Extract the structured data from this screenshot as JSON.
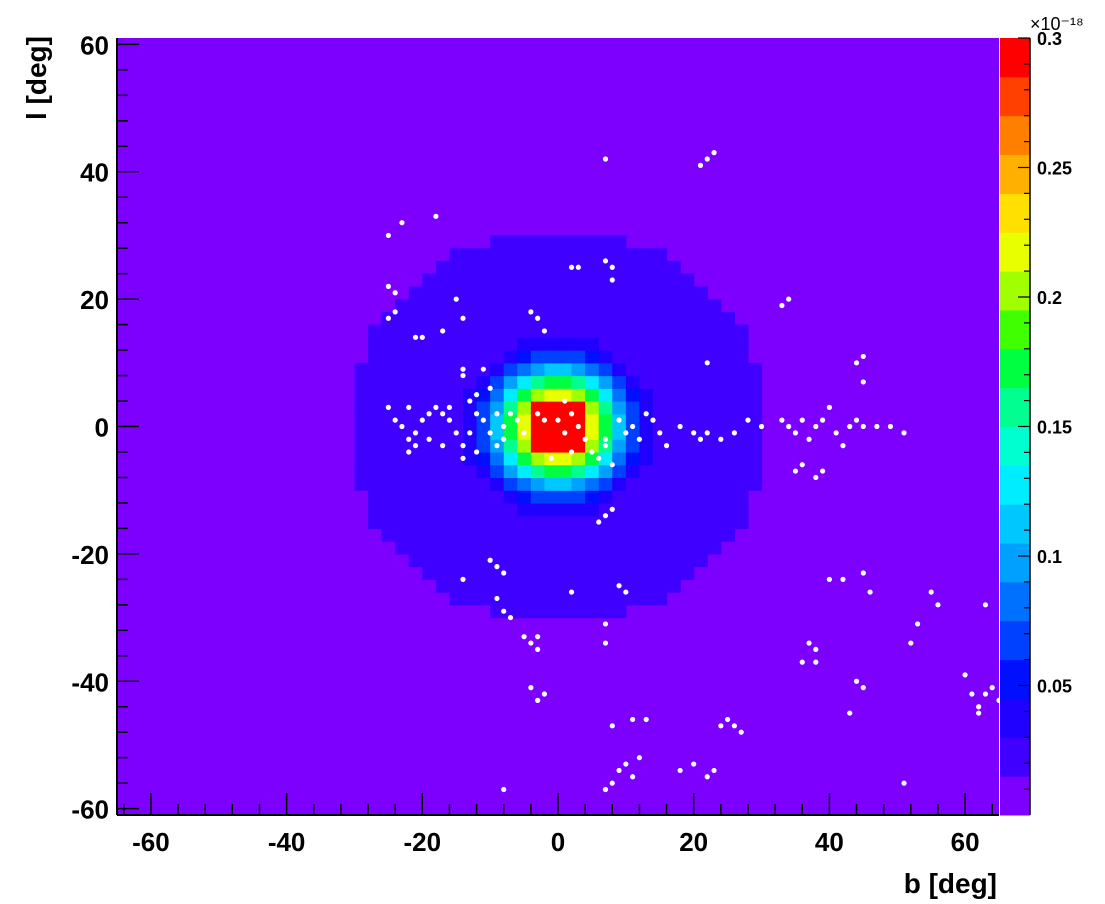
{
  "chart_data": {
    "type": "heatmap",
    "title": "",
    "xlabel": "b [deg]",
    "ylabel": "l [deg]",
    "xlim": [
      -65,
      65
    ],
    "ylim": [
      -61,
      61
    ],
    "x_ticks": [
      "-60",
      "-40",
      "-20",
      "0",
      "20",
      "40",
      "60"
    ],
    "y_ticks": [
      "60",
      "40",
      "20",
      "0",
      "-20",
      "-40",
      "-60"
    ],
    "colorbar": {
      "exponent": "×10⁻¹⁸",
      "range": [
        0,
        0.3
      ],
      "tick_labels": [
        "0.3",
        "0.25",
        "0.2",
        "0.15",
        "0.1",
        "0.05"
      ],
      "tick_values": [
        0.3,
        0.25,
        0.2,
        0.15,
        0.1,
        0.05
      ]
    },
    "heatmap_model": {
      "description": "radially symmetric intensity centered at (0,0)",
      "peak": 0.3,
      "sigma_deg": 6.5,
      "cutoff_radius_deg": 31,
      "bin_deg": 2
    },
    "palette": [
      "#7d00ff",
      "#4000ff",
      "#2000ff",
      "#0010ff",
      "#0040ff",
      "#0070ff",
      "#00a0ff",
      "#00c8ff",
      "#00ecff",
      "#00ffd0",
      "#00ff90",
      "#00ff40",
      "#40ff00",
      "#a0ff00",
      "#e8ff00",
      "#ffe000",
      "#ffb000",
      "#ff8000",
      "#ff4000",
      "#ff0000"
    ],
    "background_color": "#7d00ff",
    "points": [
      [
        -25,
        30
      ],
      [
        -23,
        32
      ],
      [
        -18,
        33
      ],
      [
        -25,
        22
      ],
      [
        -24,
        21
      ],
      [
        -25,
        17
      ],
      [
        -24,
        18
      ],
      [
        -21,
        14
      ],
      [
        -20,
        14
      ],
      [
        -17,
        15
      ],
      [
        -15,
        20
      ],
      [
        -14,
        17
      ],
      [
        -14,
        8
      ],
      [
        -14,
        9
      ],
      [
        -12,
        5
      ],
      [
        -11,
        9
      ],
      [
        -10,
        6
      ],
      [
        -25,
        3
      ],
      [
        -24,
        1
      ],
      [
        -22,
        3
      ],
      [
        -23,
        0
      ],
      [
        -22,
        -2
      ],
      [
        -21,
        -3
      ],
      [
        -20,
        1
      ],
      [
        -19,
        2
      ],
      [
        -17,
        2
      ],
      [
        -16,
        1
      ],
      [
        -15,
        -1
      ],
      [
        -14,
        -3
      ],
      [
        -13,
        -1
      ],
      [
        -12,
        2
      ],
      [
        -11,
        1
      ],
      [
        -10,
        -1
      ],
      [
        -9,
        -3
      ],
      [
        -8,
        0
      ],
      [
        -7,
        2
      ],
      [
        -6,
        1
      ],
      [
        -5,
        -1
      ],
      [
        -22,
        -4
      ],
      [
        -21,
        -1
      ],
      [
        -19,
        -2
      ],
      [
        -18,
        3
      ],
      [
        -17,
        -3
      ],
      [
        -16,
        3
      ],
      [
        -12,
        -4
      ],
      [
        -14,
        -5
      ],
      [
        -13,
        4
      ],
      [
        -9,
        2
      ],
      [
        -8,
        -2
      ],
      [
        -4,
        18
      ],
      [
        -3,
        17
      ],
      [
        -2,
        15
      ],
      [
        -3,
        2
      ],
      [
        -2,
        1
      ],
      [
        0,
        1
      ],
      [
        1,
        -1
      ],
      [
        2,
        -4
      ],
      [
        -1,
        -5
      ],
      [
        1,
        4
      ],
      [
        2,
        2
      ],
      [
        3,
        0
      ],
      [
        4,
        -2
      ],
      [
        5,
        -4
      ],
      [
        6,
        -5
      ],
      [
        7,
        -3
      ],
      [
        8,
        -6
      ],
      [
        7,
        -2
      ],
      [
        9,
        1
      ],
      [
        10,
        -1
      ],
      [
        11,
        0
      ],
      [
        12,
        -2
      ],
      [
        13,
        2
      ],
      [
        14,
        1
      ],
      [
        15,
        -1
      ],
      [
        16,
        -3
      ],
      [
        18,
        0
      ],
      [
        20,
        -1
      ],
      [
        21,
        -2
      ],
      [
        22,
        -1
      ],
      [
        24,
        -2
      ],
      [
        26,
        -1
      ],
      [
        28,
        1
      ],
      [
        30,
        0
      ],
      [
        33,
        1
      ],
      [
        34,
        0
      ],
      [
        35,
        -1
      ],
      [
        36,
        1
      ],
      [
        37,
        -2
      ],
      [
        38,
        0
      ],
      [
        39,
        1
      ],
      [
        40,
        3
      ],
      [
        41,
        -1
      ],
      [
        42,
        -3
      ],
      [
        43,
        0
      ],
      [
        44,
        1
      ],
      [
        45,
        0
      ],
      [
        47,
        0
      ],
      [
        49,
        0
      ],
      [
        51,
        -1
      ],
      [
        35,
        -7
      ],
      [
        36,
        -6
      ],
      [
        38,
        -8
      ],
      [
        39,
        -7
      ],
      [
        44,
        10
      ],
      [
        45,
        11
      ],
      [
        45,
        7
      ],
      [
        40,
        -24
      ],
      [
        42,
        -24
      ],
      [
        45,
        -23
      ],
      [
        46,
        -26
      ],
      [
        37,
        -34
      ],
      [
        38,
        -35
      ],
      [
        38,
        -37
      ],
      [
        36,
        -37
      ],
      [
        44,
        -40
      ],
      [
        45,
        -41
      ],
      [
        43,
        -45
      ],
      [
        52,
        -34
      ],
      [
        53,
        -31
      ],
      [
        55,
        -26
      ],
      [
        56,
        -28
      ],
      [
        60,
        -39
      ],
      [
        61,
        -42
      ],
      [
        62,
        -44
      ],
      [
        63,
        -42
      ],
      [
        64,
        -41
      ],
      [
        65,
        -43
      ],
      [
        62,
        -45
      ],
      [
        63,
        -28
      ],
      [
        51,
        -56
      ],
      [
        7,
        42
      ],
      [
        22,
        42
      ],
      [
        23,
        43
      ],
      [
        21,
        41
      ],
      [
        2,
        25
      ],
      [
        3,
        25
      ],
      [
        7,
        26
      ],
      [
        8,
        25
      ],
      [
        8,
        23
      ],
      [
        -10,
        -21
      ],
      [
        -9,
        -22
      ],
      [
        -8,
        -23
      ],
      [
        -9,
        -27
      ],
      [
        -8,
        -29
      ],
      [
        -7,
        -30
      ],
      [
        -5,
        -33
      ],
      [
        -4,
        -34
      ],
      [
        -3,
        -33
      ],
      [
        -3,
        -35
      ],
      [
        -4,
        -41
      ],
      [
        -3,
        -43
      ],
      [
        -2,
        -42
      ],
      [
        -14,
        -24
      ],
      [
        2,
        -26
      ],
      [
        7,
        -31
      ],
      [
        7,
        -34
      ],
      [
        9,
        -25
      ],
      [
        10,
        -26
      ],
      [
        6,
        -15
      ],
      [
        7,
        -14
      ],
      [
        8,
        -13
      ],
      [
        7,
        -57
      ],
      [
        8,
        -56
      ],
      [
        9,
        -54
      ],
      [
        10,
        -53
      ],
      [
        11,
        -55
      ],
      [
        12,
        -52
      ],
      [
        8,
        -47
      ],
      [
        11,
        -46
      ],
      [
        13,
        -46
      ],
      [
        18,
        -54
      ],
      [
        20,
        -53
      ],
      [
        22,
        -55
      ],
      [
        23,
        -54
      ],
      [
        24,
        -47
      ],
      [
        25,
        -46
      ],
      [
        26,
        -47
      ],
      [
        27,
        -48
      ],
      [
        22,
        10
      ],
      [
        34,
        20
      ],
      [
        33,
        19
      ],
      [
        -8,
        -57
      ]
    ]
  }
}
